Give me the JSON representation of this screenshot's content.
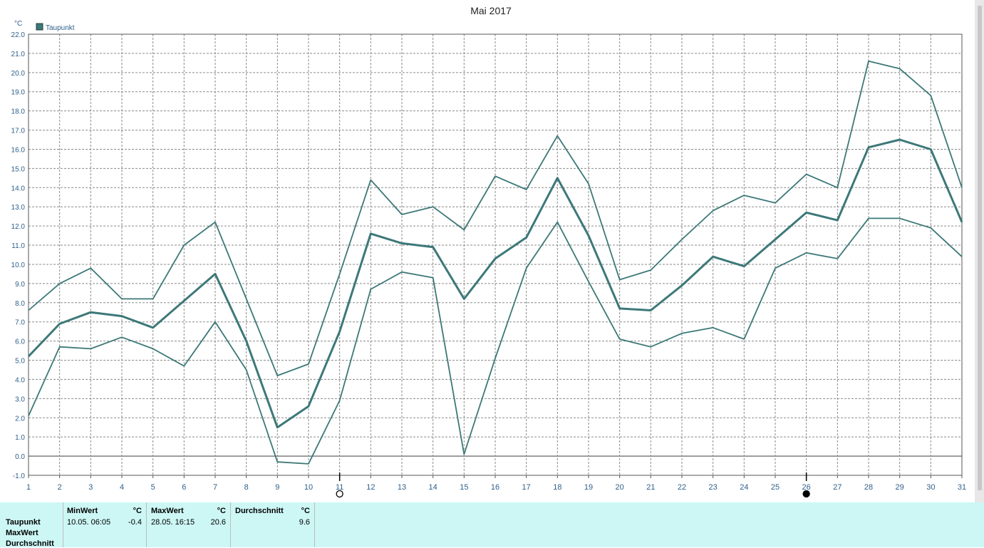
{
  "chart_data": {
    "type": "line",
    "title": "Mai 2017",
    "ylabel": "°C",
    "legend": {
      "label": "Taupunkt",
      "position": "top-left"
    },
    "x": [
      1,
      2,
      3,
      4,
      5,
      6,
      7,
      8,
      9,
      10,
      11,
      12,
      13,
      14,
      15,
      16,
      17,
      18,
      19,
      20,
      21,
      22,
      23,
      24,
      25,
      26,
      27,
      28,
      29,
      30,
      31
    ],
    "xticks": [
      "1",
      "2",
      "3",
      "4",
      "5",
      "6",
      "7",
      "8",
      "9",
      "10",
      "11",
      "12",
      "13",
      "14",
      "15",
      "16",
      "17",
      "18",
      "19",
      "20",
      "21",
      "22",
      "23",
      "24",
      "25",
      "26",
      "27",
      "28",
      "29",
      "30",
      "31"
    ],
    "ylim": [
      -1.0,
      22.0
    ],
    "yticks": [
      "-1.0",
      "0.0",
      "1.0",
      "2.0",
      "3.0",
      "4.0",
      "5.0",
      "6.0",
      "7.0",
      "8.0",
      "9.0",
      "10.0",
      "11.0",
      "12.0",
      "13.0",
      "14.0",
      "15.0",
      "16.0",
      "17.0",
      "18.0",
      "19.0",
      "20.0",
      "21.0",
      "22.0"
    ],
    "grid": true,
    "colors": {
      "line": "#3d7878",
      "grid": "#8a8a8a",
      "axis": "#555555"
    },
    "series": [
      {
        "name": "Taupunkt",
        "role": "max",
        "values": [
          7.6,
          9.0,
          9.8,
          8.2,
          8.2,
          11.0,
          12.2,
          8.2,
          4.2,
          4.8,
          9.5,
          14.4,
          12.6,
          13.0,
          11.8,
          14.6,
          13.9,
          16.7,
          14.2,
          9.2,
          9.7,
          11.3,
          12.8,
          13.6,
          13.2,
          14.7,
          14.0,
          20.6,
          20.2,
          18.8,
          14.0
        ]
      },
      {
        "name": "Taupunkt",
        "role": "avg",
        "values": [
          5.2,
          6.9,
          7.5,
          7.3,
          6.7,
          8.1,
          9.5,
          6.0,
          1.5,
          2.6,
          6.5,
          11.6,
          11.1,
          10.9,
          8.2,
          10.3,
          11.4,
          14.5,
          11.5,
          7.7,
          7.6,
          8.9,
          10.4,
          9.9,
          11.3,
          12.7,
          12.3,
          16.1,
          16.5,
          16.0,
          12.2
        ]
      },
      {
        "name": "Taupunkt",
        "role": "min",
        "values": [
          2.1,
          5.7,
          5.6,
          6.2,
          5.6,
          4.7,
          7.0,
          4.5,
          -0.3,
          -0.4,
          2.9,
          8.7,
          9.6,
          9.3,
          0.1,
          5.1,
          9.8,
          12.2,
          9.1,
          6.1,
          5.7,
          6.4,
          6.7,
          6.1,
          9.8,
          10.6,
          10.3,
          12.4,
          12.4,
          11.9,
          10.4
        ]
      }
    ],
    "annotations": [
      {
        "x": 11,
        "symbol": "open-circle",
        "meaning": "full-moon"
      },
      {
        "x": 26,
        "symbol": "filled-circle",
        "meaning": "new-moon"
      }
    ]
  },
  "stats": {
    "row_labels": [
      "Taupunkt",
      "MaxWert",
      "Durchschnitt"
    ],
    "min": {
      "header": "MinWert",
      "unit": "°C",
      "time": "10.05.  06:05",
      "value": "-0.4"
    },
    "max": {
      "header": "MaxWert",
      "unit": "°C",
      "time": "28.05.  16:15",
      "value": "20.6"
    },
    "avg": {
      "header": "Durchschnitt",
      "unit": "°C",
      "value": "9.6"
    }
  }
}
